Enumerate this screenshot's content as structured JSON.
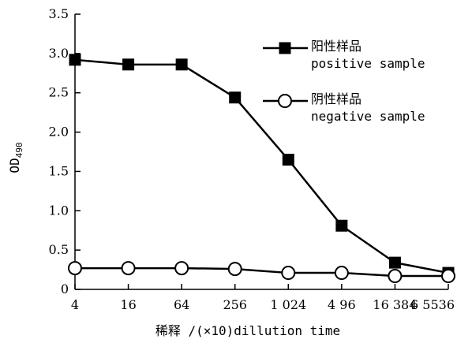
{
  "chart_data": {
    "type": "line",
    "categories": [
      "4",
      "16",
      "64",
      "256",
      "1 024",
      "4 96",
      "16 384",
      "6 5536"
    ],
    "series": [
      {
        "name": "阳性样品 positive sample",
        "name_cn": "阳性样品",
        "name_en": "positive sample",
        "marker": "filled-square",
        "values": [
          2.92,
          2.86,
          2.86,
          2.44,
          1.65,
          0.81,
          0.34,
          0.21
        ]
      },
      {
        "name": "阴性样品 negative sample",
        "name_cn": "阴性样品",
        "name_en": "negative sample",
        "marker": "open-circle",
        "values": [
          0.27,
          0.27,
          0.27,
          0.26,
          0.21,
          0.21,
          0.17,
          0.17
        ]
      }
    ],
    "xlabel": "稀释 /(×10)dillution time",
    "ylabel": "OD",
    "ylabel_sub": "490",
    "ylim": [
      0,
      3.5
    ],
    "yticks": [
      "0",
      "0.5",
      "1.0",
      "1.5",
      "2.0",
      "2.5",
      "3.0",
      "3.5"
    ],
    "ytick_values": [
      0,
      0.5,
      1.0,
      1.5,
      2.0,
      2.5,
      3.0,
      3.5
    ],
    "grid": false,
    "legend_position": "top-right"
  }
}
